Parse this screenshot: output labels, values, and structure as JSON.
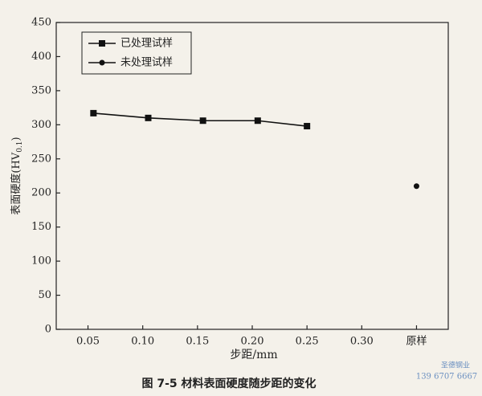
{
  "chart_data": {
    "type": "line",
    "caption": "图 7-5   材料表面硬度随步距的变化",
    "xlabel": "步距/mm",
    "ylabel": {
      "main": "表面硬度(HV",
      "sub": "0.1",
      "close": ")"
    },
    "xlim": [
      0.021,
      0.379
    ],
    "xticks": [
      0.05,
      {
        "value": 0.1,
        "label": "0.10"
      },
      0.15,
      {
        "value": 0.2,
        "label": "0.20"
      },
      0.25,
      {
        "value": 0.3,
        "label": "0.30"
      },
      {
        "value": 0.35,
        "label": "原样"
      }
    ],
    "ylim": [
      0,
      450
    ],
    "yticks": [
      0,
      50,
      100,
      150,
      200,
      250,
      300,
      350,
      400,
      450
    ],
    "legend": "upper left",
    "series": [
      {
        "name": "已处理试样",
        "color": "#111111",
        "marker": "square",
        "x": [
          0.055,
          0.105,
          0.155,
          0.205,
          0.25
        ],
        "values": [
          317,
          310,
          306,
          306,
          298
        ]
      },
      {
        "name": "未处理试样",
        "color": "#111111",
        "marker": "circle",
        "x": [
          0.35
        ],
        "values": [
          210
        ]
      }
    ],
    "watermark": [
      "圣德钢业",
      "139 6707 6667"
    ]
  }
}
